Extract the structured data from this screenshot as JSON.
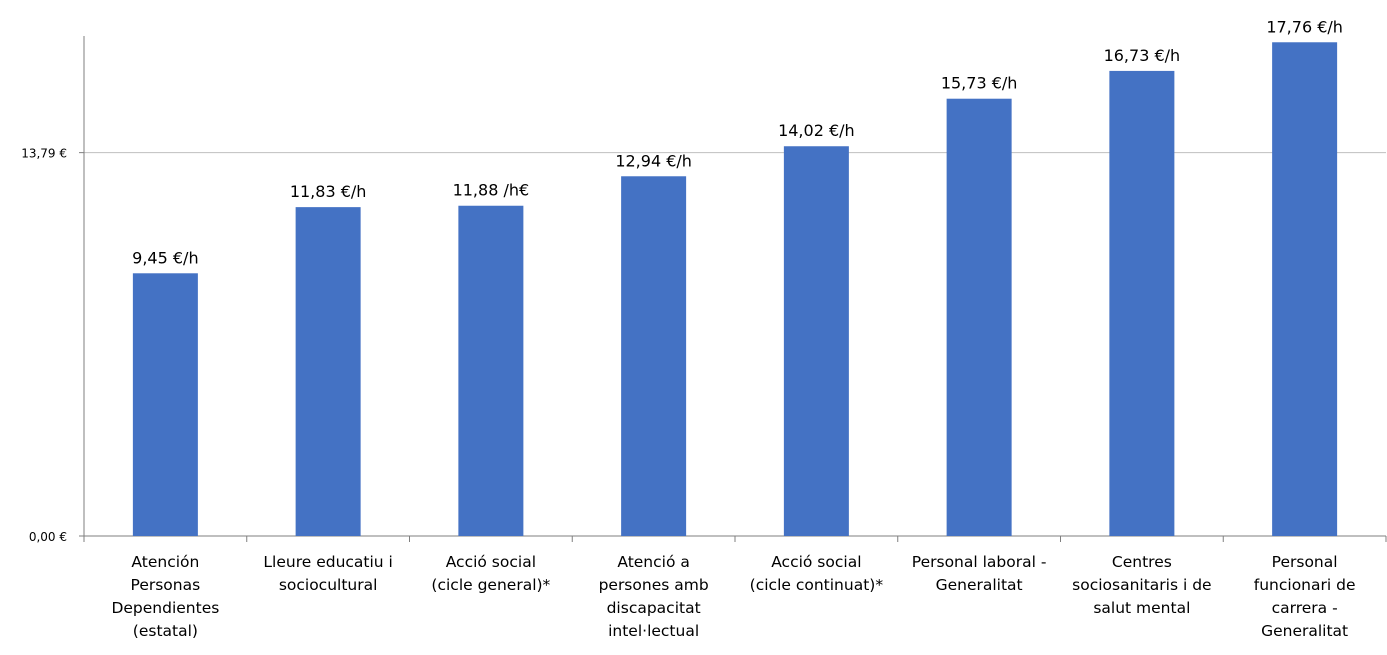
{
  "chart_data": {
    "type": "bar",
    "title": "",
    "xlabel": "",
    "ylabel": "",
    "ylim": [
      0,
      18.0
    ],
    "grid": "horizontal at 13,79 €",
    "legend": "none",
    "colors": {
      "bar": "#4472C4",
      "axis": "#7f7f7f",
      "gridline": "#bfbfbf",
      "text": "#000000"
    },
    "y_ticks": [
      {
        "value": 0.0,
        "label": "0,00 €"
      },
      {
        "value": 13.79,
        "label": "13,79 €"
      }
    ],
    "categories": [
      [
        "Atención",
        "Personas",
        "Dependientes",
        "(estatal)"
      ],
      [
        "Lleure educatiu i",
        "sociocultural"
      ],
      [
        "Acció social",
        "(cicle general)*"
      ],
      [
        "Atenció a",
        "persones amb",
        "discapacitat",
        "intel·lectual"
      ],
      [
        "Acció social",
        "(cicle continuat)*"
      ],
      [
        "Personal laboral -",
        "Generalitat"
      ],
      [
        "Centres",
        "sociosanitaris i de",
        "salut mental"
      ],
      [
        "Personal",
        "funcionari de",
        "carrera -",
        "Generalitat"
      ]
    ],
    "values": [
      9.45,
      11.83,
      11.88,
      12.94,
      14.02,
      15.73,
      16.73,
      17.76
    ],
    "data_labels": [
      "9,45 €/h",
      "11,83 €/h",
      "11,88 /h€",
      "12,94 €/h",
      "14,02 €/h",
      "15,73 €/h",
      "16,73 €/h",
      "17,76 €/h"
    ]
  }
}
